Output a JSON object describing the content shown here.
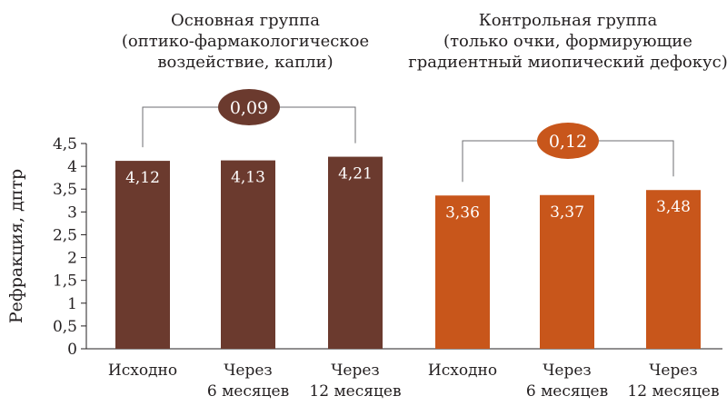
{
  "chart_data": {
    "type": "bar",
    "ylabel": "Рефракция, дптр",
    "ylim": [
      0,
      4.5
    ],
    "yticks": [
      "0",
      "0,5",
      "1",
      "1,5",
      "2",
      "2,5",
      "3",
      "3,5",
      "4",
      "4,5"
    ],
    "grid": false,
    "groups": [
      {
        "title_lines": [
          "Основная группа",
          "(оптико-фармакологическое",
          "воздействие, капли)"
        ],
        "color": "#6b3a2e",
        "categories": [
          [
            "Исходно"
          ],
          [
            "Через",
            "6 месяцев"
          ],
          [
            "Через",
            "12 месяцев"
          ]
        ],
        "values": [
          4.12,
          4.13,
          4.21
        ],
        "value_labels": [
          "4,12",
          "4,13",
          "4,21"
        ],
        "difference": {
          "label": "0,09",
          "color": "#6b3a2e"
        }
      },
      {
        "title_lines": [
          "Контрольная группа",
          "(только очки, формирующие",
          "градиентный миопический дефокус)"
        ],
        "color": "#c8561b",
        "categories": [
          [
            "Исходно"
          ],
          [
            "Через",
            "6 месяцев"
          ],
          [
            "Через",
            "12 месяцев"
          ]
        ],
        "values": [
          3.36,
          3.37,
          3.48
        ],
        "value_labels": [
          "3,36",
          "3,37",
          "3,48"
        ],
        "difference": {
          "label": "0,12",
          "color": "#c8561b"
        }
      }
    ]
  }
}
